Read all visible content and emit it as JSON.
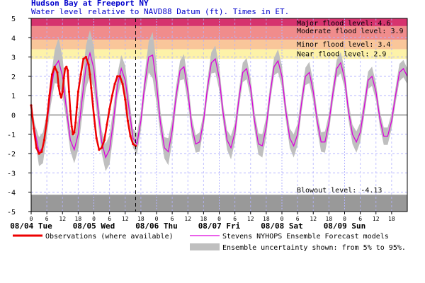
{
  "colors": {
    "title": "#0000cc",
    "major": "#d6336e",
    "moderate": "#f08c8c",
    "minor": "#f9c69a",
    "near": "#fdf2a8",
    "blowout": "#999999",
    "observations": "#ee0000",
    "forecast": "#dd00dd",
    "uncertainty": "#bfbfbf",
    "grid": "#b4b4ff",
    "zero_line": "#aaaaaa"
  },
  "chart_data": {
    "type": "line",
    "title": "Hudson Bay at Freeport NY",
    "subtitle": "Water level relative to NAVD88 Datum (ft). Times in ET.",
    "xlabel": "",
    "ylabel": "",
    "x_unit": "hours from 08/04 00:00 ET",
    "xlim": [
      0,
      144
    ],
    "ylim": [
      -5,
      5
    ],
    "y_ticks": [
      -5,
      -4,
      -3,
      -2,
      -1,
      0,
      1,
      2,
      3,
      4,
      5
    ],
    "x_hour_ticks": [
      "0",
      "6",
      "12",
      "18",
      "0",
      "6",
      "12",
      "18",
      "0",
      "6",
      "12",
      "18",
      "0",
      "6",
      "12",
      "18",
      "0",
      "6",
      "12",
      "18",
      "0",
      "6",
      "12",
      "18"
    ],
    "x_day_labels": [
      "08/04 Tue",
      "08/05 Wed",
      "08/06 Thu",
      "08/07 Fri",
      "08/08 Sat",
      "08/09 Sun"
    ],
    "now_hour": 40,
    "grid": true,
    "thresholds": [
      {
        "label": "Major flood level: 4.6",
        "from": 4.6,
        "to": 5.0,
        "color": "major"
      },
      {
        "label": "Moderate flood level: 3.9",
        "from": 3.9,
        "to": 4.6,
        "color": "moderate"
      },
      {
        "label": "Minor flood level: 3.4",
        "from": 3.4,
        "to": 3.9,
        "color": "minor"
      },
      {
        "label": "Near flood level: 2.9",
        "from": 2.9,
        "to": 3.4,
        "color": "near"
      },
      {
        "label": "Blowout level: -4.13",
        "from": -5.0,
        "to": -4.13,
        "color": "blowout"
      }
    ],
    "series": [
      {
        "name": "Stevens NYHOPS Ensemble Forecast models",
        "kind": "forecast",
        "x": [
          0,
          1.5,
          3,
          4.5,
          6,
          7.5,
          9,
          10.5,
          12,
          13.5,
          15,
          16.5,
          18,
          19.5,
          21,
          22.5,
          24,
          25.5,
          27,
          28.5,
          30,
          31.5,
          33,
          34.5,
          36,
          37.5,
          39,
          40.5,
          42,
          43.5,
          45,
          46.5,
          48,
          49.5,
          51,
          52.5,
          54,
          55.5,
          57,
          58.5,
          60,
          61.5,
          63,
          64.5,
          66,
          67.5,
          69,
          70.5,
          72,
          73.5,
          75,
          76.5,
          78,
          79.5,
          81,
          82.5,
          84,
          85.5,
          87,
          88.5,
          90,
          91.5,
          93,
          94.5,
          96,
          97.5,
          99,
          100.5,
          102,
          103.5,
          105,
          106.5,
          108,
          109.5,
          111,
          112.5,
          114,
          115.5,
          117,
          118.5,
          120,
          121.5,
          123,
          124.5,
          126,
          127.5,
          129,
          130.5,
          132,
          133.5,
          135,
          136.5,
          138,
          139.5,
          141,
          142.5,
          144
        ],
        "y": [
          0.2,
          -0.9,
          -1.9,
          -1.7,
          -0.5,
          1.2,
          2.5,
          2.8,
          2.0,
          0.3,
          -1.3,
          -1.8,
          -1.0,
          0.8,
          2.5,
          3.2,
          2.4,
          0.4,
          -1.4,
          -2.2,
          -1.8,
          -0.3,
          1.5,
          2.4,
          1.8,
          0.3,
          -1.2,
          -1.5,
          -0.3,
          1.6,
          3.0,
          3.1,
          1.6,
          -0.4,
          -1.7,
          -1.9,
          -0.8,
          1.0,
          2.3,
          2.5,
          1.2,
          -0.6,
          -1.5,
          -1.4,
          -0.3,
          1.4,
          2.7,
          2.9,
          1.9,
          0.1,
          -1.3,
          -1.7,
          -0.9,
          0.8,
          2.2,
          2.4,
          1.4,
          -0.3,
          -1.5,
          -1.6,
          -0.6,
          1.1,
          2.5,
          2.8,
          2.0,
          0.2,
          -1.2,
          -1.6,
          -1.0,
          0.6,
          2.0,
          2.2,
          1.2,
          -0.3,
          -1.4,
          -1.4,
          -0.4,
          1.1,
          2.4,
          2.7,
          1.9,
          0.2,
          -1.0,
          -1.4,
          -0.9,
          0.4,
          1.8,
          2.0,
          1.2,
          -0.2,
          -1.1,
          -1.1,
          -0.3,
          1.0,
          2.2,
          2.4,
          2.0
        ]
      },
      {
        "name": "Observations (where available)",
        "kind": "observations",
        "x": [
          0,
          1,
          2,
          3,
          4,
          5,
          6,
          7,
          8,
          9,
          10,
          10.5,
          11,
          11.5,
          12,
          12.5,
          13,
          13.5,
          14,
          14.5,
          15,
          15.5,
          16,
          16.5,
          17,
          17.5,
          18,
          19,
          20,
          21,
          22,
          22.5,
          23,
          24,
          25,
          26,
          27,
          28,
          29,
          30,
          31,
          32,
          33,
          34,
          35,
          36,
          37,
          38,
          39,
          40
        ],
        "y": [
          0.5,
          -0.7,
          -1.7,
          -2.0,
          -1.9,
          -1.3,
          -0.3,
          1.0,
          2.1,
          2.5,
          2.2,
          1.5,
          1.1,
          0.9,
          1.2,
          1.9,
          2.4,
          2.5,
          2.3,
          1.2,
          0.2,
          -0.6,
          -1.0,
          -0.9,
          -0.4,
          0.4,
          1.2,
          2.1,
          2.9,
          3.0,
          2.6,
          2.1,
          1.4,
          0.0,
          -1.2,
          -1.8,
          -1.7,
          -1.3,
          -0.5,
          0.3,
          1.0,
          1.6,
          2.0,
          2.0,
          1.6,
          0.8,
          -0.3,
          -1.1,
          -1.5,
          -1.6
        ]
      }
    ],
    "uncertainty_halfwidth": [
      0.35,
      0.4,
      0.75,
      0.8,
      0.6,
      0.7,
      0.85,
      1.2,
      1.0,
      0.6,
      0.55,
      0.7,
      0.8,
      0.9,
      1.1,
      1.2,
      1.1,
      0.7,
      0.6,
      0.7,
      0.75,
      0.7,
      0.6,
      0.7,
      0.75,
      0.6,
      0.5,
      0.55,
      0.5,
      0.55,
      0.8,
      1.2,
      1.0,
      0.6,
      0.55,
      0.7,
      0.6,
      0.5,
      0.5,
      0.65,
      0.6,
      0.5,
      0.45,
      0.5,
      0.4,
      0.45,
      0.55,
      0.7,
      0.6,
      0.45,
      0.5,
      0.6,
      0.5,
      0.45,
      0.5,
      0.55,
      0.5,
      0.45,
      0.55,
      0.6,
      0.5,
      0.45,
      0.45,
      0.6,
      0.55,
      0.45,
      0.5,
      0.6,
      0.55,
      0.45,
      0.45,
      0.55,
      0.5,
      0.45,
      0.5,
      0.55,
      0.45,
      0.45,
      0.45,
      0.55,
      0.5,
      0.45,
      0.5,
      0.55,
      0.5,
      0.45,
      0.45,
      0.5,
      0.45,
      0.4,
      0.45,
      0.45,
      0.4,
      0.4,
      0.45,
      0.45,
      0.4
    ],
    "legend": {
      "observations": "Observations (where available)",
      "forecast": "Stevens NYHOPS Ensemble Forecast models",
      "uncertainty": "Ensemble uncertainty shown: from 5% to 95%."
    }
  }
}
